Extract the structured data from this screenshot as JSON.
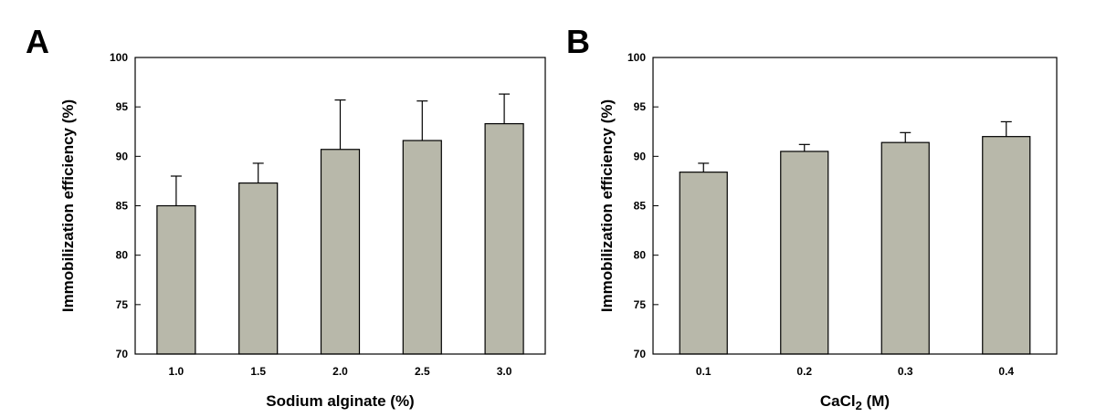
{
  "chart_data": [
    {
      "panel": "A",
      "type": "bar",
      "categories": [
        "1.0",
        "1.5",
        "2.0",
        "2.5",
        "3.0"
      ],
      "values": [
        85.0,
        87.3,
        90.7,
        91.6,
        93.3
      ],
      "errors": [
        3.0,
        2.0,
        5.0,
        4.0,
        3.0
      ],
      "xlabel": "Sodium alginate (%)",
      "ylabel": "Immobilization efficiency (%)",
      "ylim": [
        70,
        100
      ],
      "yticks": [
        70,
        75,
        80,
        85,
        90,
        95,
        100
      ],
      "grid": false,
      "bar_color": "#b8b8aa"
    },
    {
      "panel": "B",
      "type": "bar",
      "categories": [
        "0.1",
        "0.2",
        "0.3",
        "0.4"
      ],
      "values": [
        88.4,
        90.5,
        91.4,
        92.0
      ],
      "errors": [
        0.9,
        0.7,
        1.0,
        1.5
      ],
      "xlabel": "CaCl",
      "xlabel_sub": "2",
      "xlabel_suffix": " (M)",
      "ylabel": "Immobilization efficiency (%)",
      "ylim": [
        70,
        100
      ],
      "yticks": [
        70,
        75,
        80,
        85,
        90,
        95,
        100
      ],
      "grid": false,
      "bar_color": "#b8b8aa"
    }
  ]
}
